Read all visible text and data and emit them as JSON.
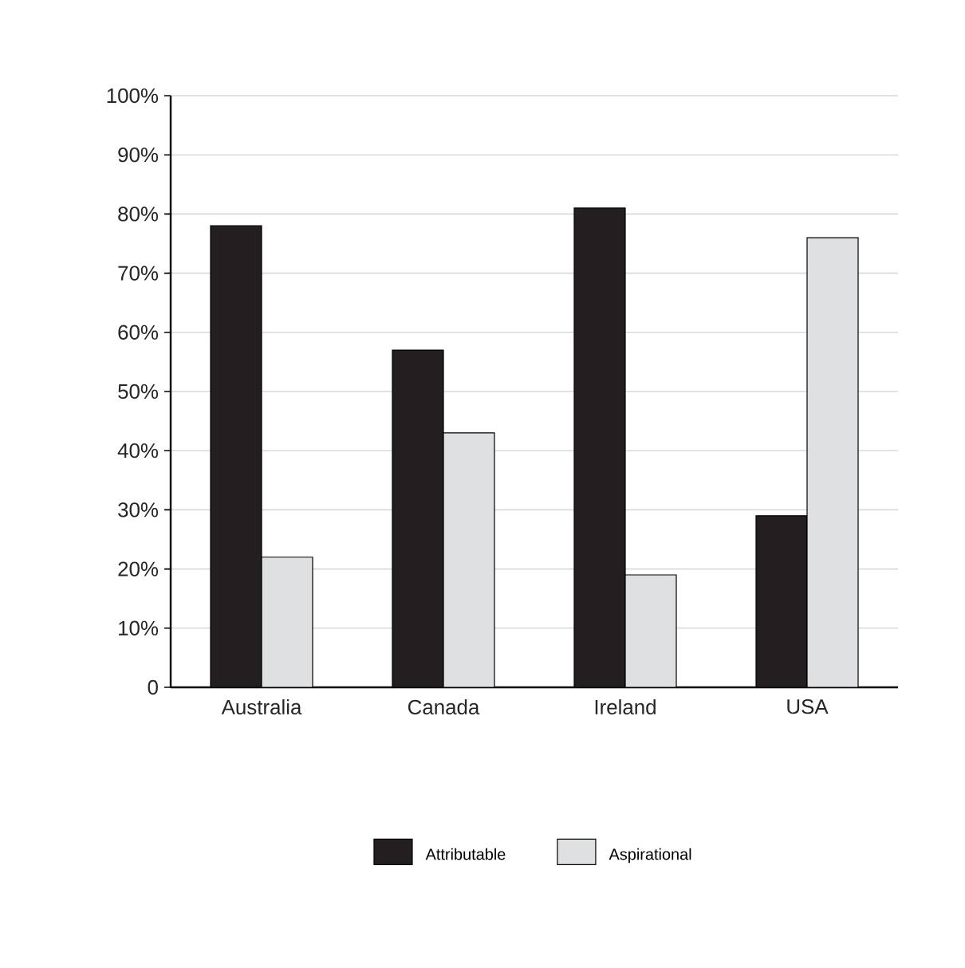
{
  "chart_data": {
    "type": "bar",
    "categories": [
      "Australia",
      "Canada",
      "Ireland",
      "USA"
    ],
    "series": [
      {
        "name": "Attributable",
        "color": "#231f20",
        "values": [
          78,
          57,
          81,
          29
        ]
      },
      {
        "name": "Aspirational",
        "color": "#dfe0e2",
        "values": [
          22,
          43,
          19,
          76
        ]
      }
    ],
    "ylim": [
      0,
      100
    ],
    "yticks": [
      {
        "value": 0,
        "label": "0"
      },
      {
        "value": 10,
        "label": "10%"
      },
      {
        "value": 20,
        "label": "20%"
      },
      {
        "value": 30,
        "label": "30%"
      },
      {
        "value": 40,
        "label": "40%"
      },
      {
        "value": 50,
        "label": "50%"
      },
      {
        "value": 60,
        "label": "60%"
      },
      {
        "value": 70,
        "label": "70%"
      },
      {
        "value": 80,
        "label": "80%"
      },
      {
        "value": 90,
        "label": "90%"
      },
      {
        "value": 100,
        "label": "100%"
      }
    ],
    "grid": "y",
    "legend": "bottom"
  }
}
